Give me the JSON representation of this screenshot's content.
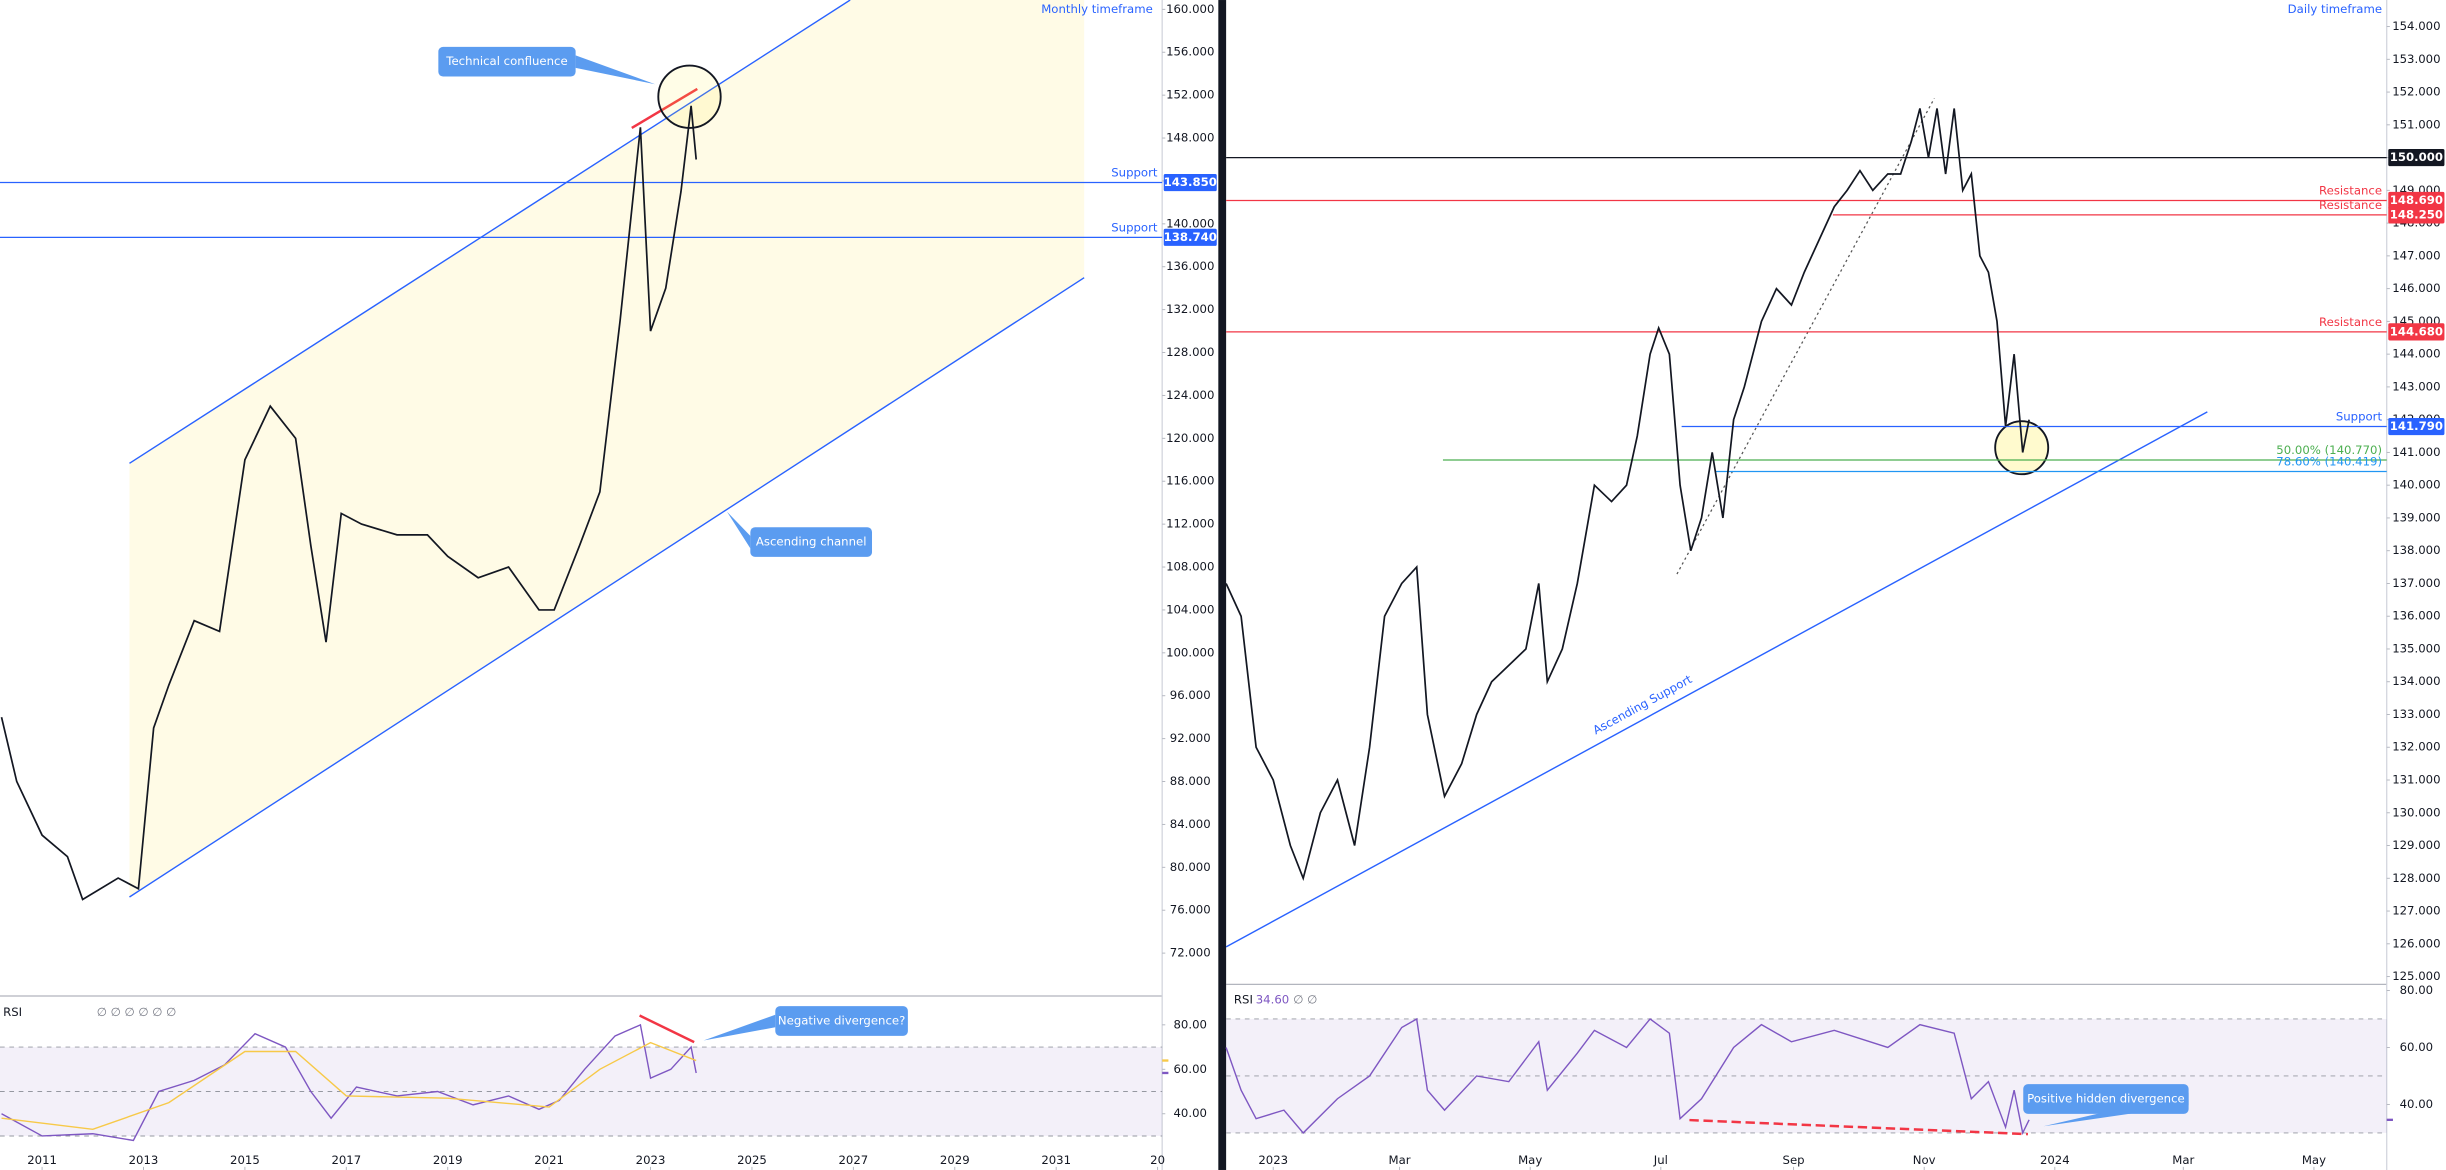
{
  "chart_data": [
    {
      "type": "line",
      "timeframe": "Monthly timeframe",
      "color": "#131722",
      "x": [
        2010.2,
        2010.5,
        2011.0,
        2011.5,
        2011.8,
        2012.5,
        2012.9,
        2013.2,
        2013.5,
        2014.0,
        2014.5,
        2015.0,
        2015.5,
        2016.0,
        2016.3,
        2016.6,
        2016.9,
        2017.3,
        2018.0,
        2018.6,
        2019.0,
        2019.6,
        2020.2,
        2020.8,
        2021.1,
        2021.6,
        2022.0,
        2022.4,
        2022.8,
        2023.0,
        2023.3,
        2023.6,
        2023.8,
        2023.9
      ],
      "values": [
        94,
        88,
        83,
        81,
        77,
        79,
        78,
        93,
        97,
        103,
        102,
        118,
        123,
        120,
        110,
        101,
        113,
        112,
        111,
        111,
        109,
        107,
        108,
        104,
        104,
        110,
        115,
        131,
        149,
        130,
        134,
        143,
        151,
        146
      ],
      "xlim": [
        2010.17,
        2033.09
      ],
      "xticks": [
        2011,
        2013,
        2015,
        2017,
        2019,
        2021,
        2023,
        2025,
        2027,
        2029,
        2031,
        {
          "value": 2033,
          "label": "20"
        }
      ],
      "ylim": [
        68.07,
        160.87
      ],
      "yticks": [
        {
          "value": 72,
          "label": "72.000"
        },
        {
          "value": 76,
          "label": "76.000"
        },
        {
          "value": 80,
          "label": "80.000"
        },
        {
          "value": 84,
          "label": "84.000"
        },
        {
          "value": 88,
          "label": "88.000"
        },
        {
          "value": 92,
          "label": "92.000"
        },
        {
          "value": 96,
          "label": "96.000"
        },
        {
          "value": 100,
          "label": "100.000"
        },
        {
          "value": 104,
          "label": "104.000"
        },
        {
          "value": 108,
          "label": "108.000"
        },
        {
          "value": 112,
          "label": "112.000"
        },
        {
          "value": 116,
          "label": "116.000"
        },
        {
          "value": 120,
          "label": "120.000"
        },
        {
          "value": 124,
          "label": "124.000"
        },
        {
          "value": 128,
          "label": "128.000"
        },
        {
          "value": 132,
          "label": "132.000"
        },
        {
          "value": 136,
          "label": "136.000"
        },
        {
          "value": 140,
          "label": "140.000"
        },
        {
          "value": 144,
          "label": "144.000"
        },
        {
          "value": 148,
          "label": "148.000"
        },
        {
          "value": 152,
          "label": "152.000"
        },
        {
          "value": 156,
          "label": "156.000"
        },
        {
          "value": 160,
          "label": "160.000"
        }
      ],
      "levels": [
        {
          "name": "Support",
          "value": 143.85,
          "label": "143.850",
          "color": "#2962ff"
        },
        {
          "name": "Support",
          "value": 138.74,
          "label": "138.740",
          "color": "#2962ff"
        }
      ],
      "annotations": [
        "Technical confluence",
        "Ascending channel",
        "Negative divergence?"
      ],
      "rsi": {
        "title": "RSI",
        "readings": [
          {
            "value": 58.35,
            "color": "#7e57c2"
          },
          {
            "value": 63.94,
            "color": "#f7c948"
          }
        ],
        "placeholders": "∅ ∅ ∅ ∅ ∅ ∅",
        "ylim": [
          14.7,
          91.9
        ],
        "yticks": [
          {
            "value": 40,
            "label": "40.00"
          },
          {
            "value": 60,
            "label": "60.00"
          },
          {
            "value": 80,
            "label": "80.00"
          }
        ],
        "bands": [
          70,
          50,
          30
        ],
        "series": [
          {
            "color": "#7e57c2",
            "x": [
              2010.2,
              2011,
              2012,
              2012.8,
              2013.3,
              2014,
              2014.6,
              2015.2,
              2015.8,
              2016.3,
              2016.7,
              2017.2,
              2018,
              2018.8,
              2019.5,
              2020.2,
              2020.8,
              2021.2,
              2021.7,
              2022.3,
              2022.8,
              2023.0,
              2023.4,
              2023.8,
              2023.9
            ],
            "values": [
              40,
              30,
              31,
              28,
              50,
              55,
              62,
              76,
              70,
              50,
              38,
              52,
              48,
              50,
              44,
              48,
              42,
              46,
              60,
              75,
              80,
              56,
              60,
              70,
              58.35
            ]
          },
          {
            "color": "#f7c948",
            "x": [
              2010.2,
              2012,
              2013.5,
              2015,
              2016,
              2017,
              2019,
              2021,
              2022,
              2023,
              2023.9
            ],
            "values": [
              38,
              33,
              45,
              68,
              68,
              48,
              47,
              43,
              60,
              72,
              63.94
            ]
          }
        ]
      }
    },
    {
      "type": "line",
      "timeframe": "Daily timeframe",
      "color": "#131722",
      "x": [
        -22,
        -15,
        -8,
        0,
        8,
        14,
        22,
        30,
        38,
        45,
        52,
        60,
        67,
        72,
        80,
        88,
        95,
        102,
        110,
        118,
        124,
        128,
        135,
        142,
        150,
        158,
        165,
        170,
        176,
        180,
        185,
        190,
        195,
        200,
        205,
        210,
        215,
        220,
        228,
        235,
        242,
        248,
        255,
        262,
        268,
        274,
        280,
        287,
        293,
        298,
        302,
        306,
        310,
        314,
        318,
        322,
        326,
        330,
        334,
        338,
        342,
        346,
        350,
        353
      ],
      "values": [
        137,
        136,
        132,
        131,
        129,
        128,
        130,
        131,
        129,
        132,
        136,
        137,
        137.5,
        133,
        130.5,
        131.5,
        133,
        134,
        134.5,
        135,
        137,
        134,
        135,
        137,
        140,
        139.5,
        140,
        141.5,
        144,
        144.8,
        144,
        140,
        138,
        139,
        141,
        139,
        142,
        143,
        145,
        146,
        145.5,
        146.5,
        147.5,
        148.5,
        149,
        149.6,
        149,
        149.5,
        149.5,
        150.5,
        151.5,
        150,
        151.5,
        149.5,
        151.5,
        149,
        149.5,
        147,
        146.5,
        145,
        141.8,
        144,
        141,
        142
      ],
      "xlim": [
        -22,
        520
      ],
      "xticks": [
        {
          "value": 0,
          "label": "2023"
        },
        {
          "value": 59,
          "label": "Mar"
        },
        {
          "value": 120,
          "label": "May"
        },
        {
          "value": 181,
          "label": "Jul"
        },
        {
          "value": 243,
          "label": "Sep"
        },
        {
          "value": 304,
          "label": "Nov"
        },
        {
          "value": 365,
          "label": "2024"
        },
        {
          "value": 425,
          "label": "Mar"
        },
        {
          "value": 486,
          "label": "May"
        }
      ],
      "ylim": [
        124.81,
        154.81
      ],
      "yticks": [
        {
          "value": 125,
          "label": "125.000"
        },
        {
          "value": 126,
          "label": "126.000"
        },
        {
          "value": 127,
          "label": "127.000"
        },
        {
          "value": 128,
          "label": "128.000"
        },
        {
          "value": 129,
          "label": "129.000"
        },
        {
          "value": 130,
          "label": "130.000"
        },
        {
          "value": 131,
          "label": "131.000"
        },
        {
          "value": 132,
          "label": "132.000"
        },
        {
          "value": 133,
          "label": "133.000"
        },
        {
          "value": 134,
          "label": "134.000"
        },
        {
          "value": 135,
          "label": "135.000"
        },
        {
          "value": 136,
          "label": "136.000"
        },
        {
          "value": 137,
          "label": "137.000"
        },
        {
          "value": 138,
          "label": "138.000"
        },
        {
          "value": 139,
          "label": "139.000"
        },
        {
          "value": 140,
          "label": "140.000"
        },
        {
          "value": 141,
          "label": "141.000"
        },
        {
          "value": 142,
          "label": "142.000"
        },
        {
          "value": 143,
          "label": "143.000"
        },
        {
          "value": 144,
          "label": "144.000"
        },
        {
          "value": 145,
          "label": "145.000"
        },
        {
          "value": 146,
          "label": "146.000"
        },
        {
          "value": 147,
          "label": "147.000"
        },
        {
          "value": 148,
          "label": "148.000"
        },
        {
          "value": 149,
          "label": "149.000"
        },
        {
          "value": 150,
          "label": "150.000"
        },
        {
          "value": 151,
          "label": "151.000"
        },
        {
          "value": 152,
          "label": "152.000"
        },
        {
          "value": 153,
          "label": "153.000"
        },
        {
          "value": 154,
          "label": "154.000"
        }
      ],
      "levels": [
        {
          "value": 150,
          "label": "150.000",
          "color": "#131722"
        },
        {
          "name": "Resistance",
          "value": 148.69,
          "label": "148.690",
          "color": "#f23645"
        },
        {
          "name": "Resistance",
          "value": 148.25,
          "label": "148.250",
          "color": "#f23645"
        },
        {
          "name": "Resistance",
          "value": 144.68,
          "label": "144.680",
          "color": "#f23645"
        },
        {
          "name": "Support",
          "value": 141.79,
          "label": "141.790",
          "color": "#2962ff"
        },
        {
          "name": "50.00% (140.770)",
          "value": 140.77,
          "color": "#4caf50"
        },
        {
          "name": "78.60% (140.419)",
          "value": 140.419,
          "color": "#2196f3"
        }
      ],
      "annotations": [
        "Positive hidden divergence"
      ],
      "trendline_label": "Ascending Support",
      "rsi": {
        "title": "RSI",
        "readings": [
          {
            "value": 34.6,
            "label": "34.60",
            "color": "#7e57c2"
          }
        ],
        "placeholders": "∅ ∅",
        "ylim": [
          17,
          81.6
        ],
        "yticks": [
          {
            "value": 40,
            "label": "40.00"
          },
          {
            "value": 60,
            "label": "60.00"
          },
          {
            "value": 80,
            "label": "80.00"
          }
        ],
        "bands": [
          70,
          50,
          30
        ],
        "series": [
          {
            "color": "#7e57c2",
            "x": [
              -22,
              -15,
              -8,
              5,
              14,
              30,
              45,
              60,
              67,
              72,
              80,
              95,
              110,
              124,
              128,
              142,
              150,
              165,
              176,
              185,
              190,
              200,
              215,
              228,
              242,
              262,
              287,
              302,
              318,
              326,
              334,
              342,
              346,
              350,
              353
            ],
            "values": [
              60,
              45,
              35,
              38,
              30,
              42,
              50,
              67,
              70,
              45,
              38,
              50,
              48,
              62,
              45,
              58,
              66,
              60,
              70,
              65,
              35,
              42,
              60,
              68,
              62,
              66,
              60,
              68,
              65,
              42,
              48,
              32,
              45,
              30,
              34.6
            ]
          }
        ]
      }
    }
  ]
}
